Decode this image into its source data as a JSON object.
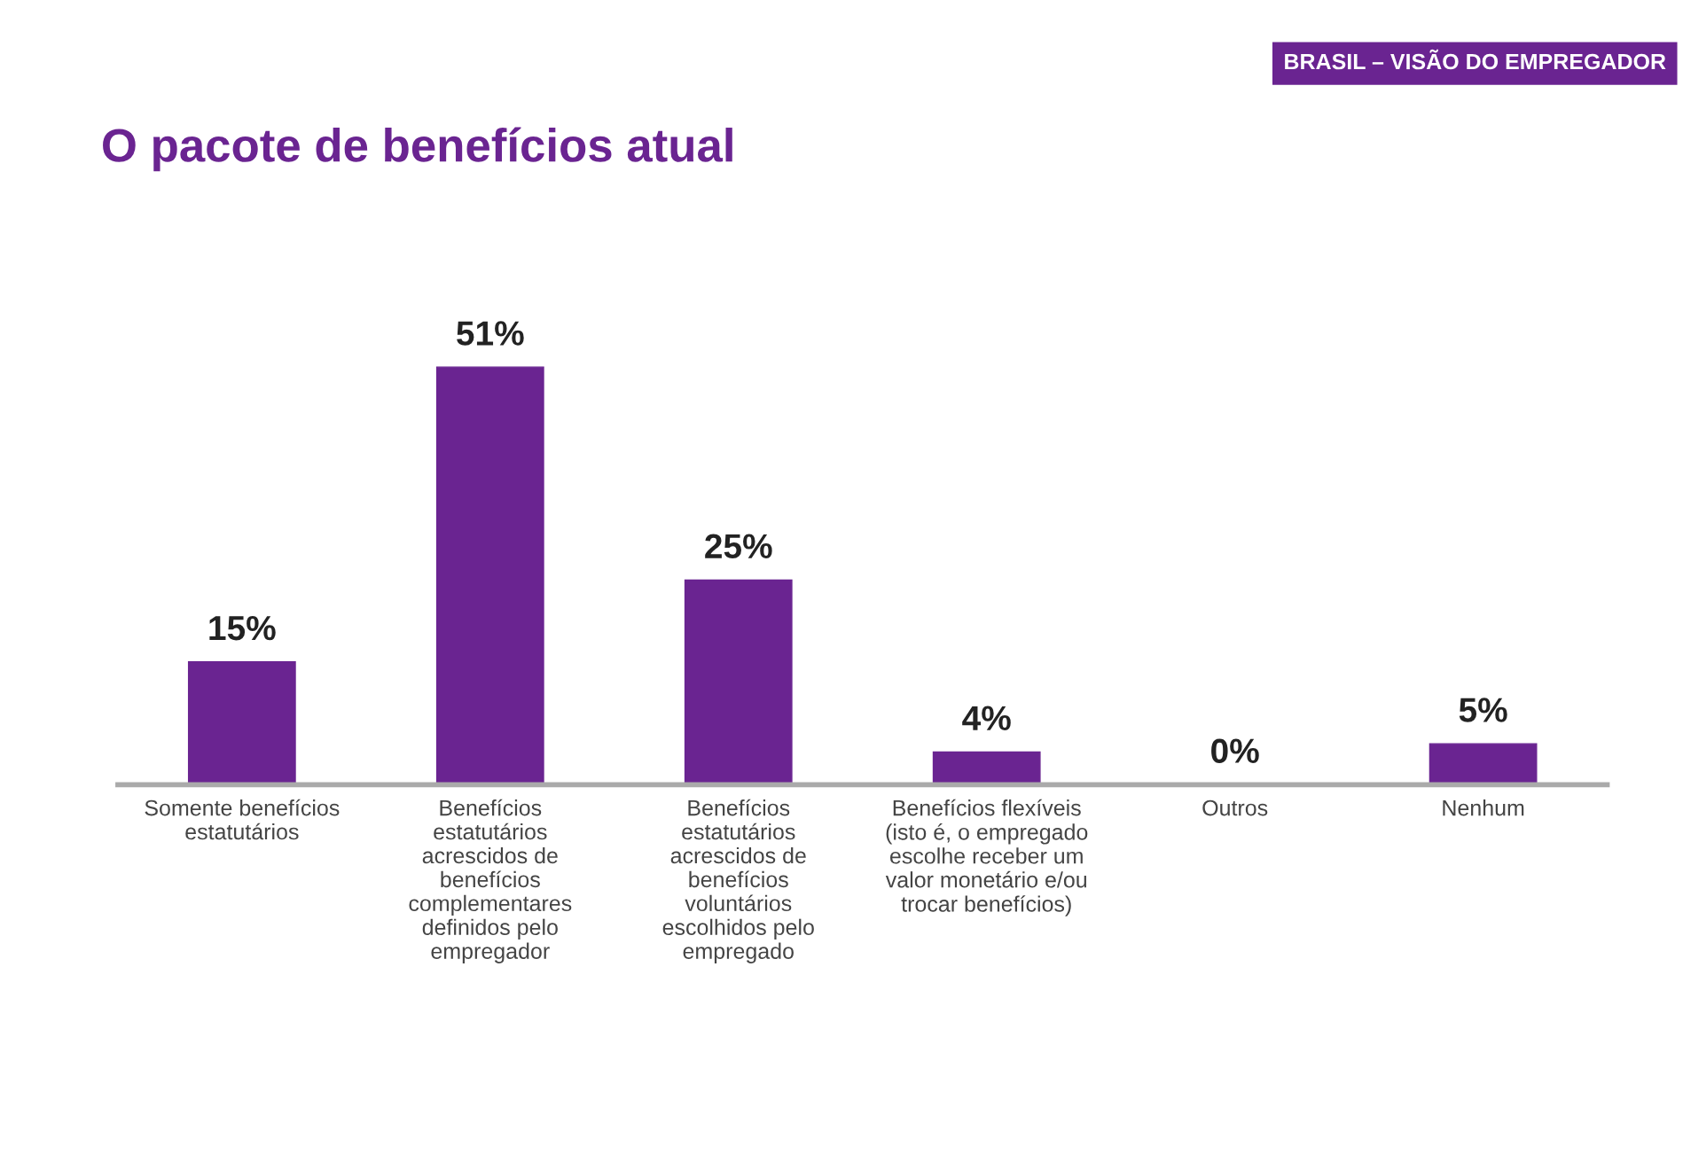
{
  "chart_data": {
    "type": "bar",
    "title": "O pacote de benefícios atual",
    "subtitle": "BRASIL – VISÃO DO EMPREGADOR",
    "categories": [
      "Somente benefícios\nestatutários",
      "Benefícios\nestatutários\nacrescidos de\nbenefícios\ncomplementares\ndefinidos pelo\nempregador",
      "Benefícios\nestatutários\nacrescidos de\nbenefícios\nvoluntários\nescolhidos pelo\nempregado",
      "Benefícios flexíveis\n(isto é, o empregado\nescolhe receber um\nvalor monetário e/ou\ntrocar benefícios)",
      "Outros",
      "Nenhum"
    ],
    "values": [
      15,
      51,
      25,
      4,
      0,
      5
    ],
    "color": "#6a2491",
    "value_labels": [
      "15%",
      "51%",
      "25%",
      "4%",
      "0%",
      "5%"
    ],
    "grid": false,
    "legend": false
  }
}
